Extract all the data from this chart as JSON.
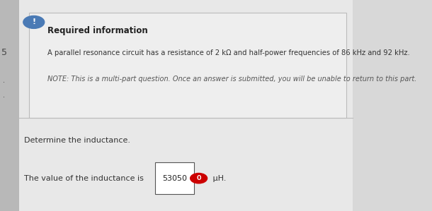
{
  "bg_color": "#e8e8e8",
  "top_bar_color": "#4a7ab5",
  "top_bar_height": 0.06,
  "info_box_bg": "#eeeeee",
  "info_box_border": "#bbbbbb",
  "required_info_label": "Required information",
  "line1": "A parallel resonance circuit has a resistance of 2 kΩ and half-power frequencies of 86 kHz and 92 kHz.",
  "line2": "NOTE: This is a multi-part question. Once an answer is submitted, you will be unable to return to this part.",
  "question_text": "Determine the inductance.",
  "answer_prefix": "The value of the inductance is ",
  "answer_value": "53050",
  "answer_suffix": " μH.",
  "icon_color": "#4a7ab5",
  "icon_exclaim_color": "#ffffff",
  "answer_box_border": "#555555",
  "answer_box_bg": "#ffffff",
  "red_icon_color": "#cc0000",
  "side_number": "5",
  "side_dots": [
    ".",
    "."
  ],
  "main_bg": "#d8d8d8",
  "left_col_bg": "#b8b8b8",
  "content_bg": "#e8e8e8"
}
